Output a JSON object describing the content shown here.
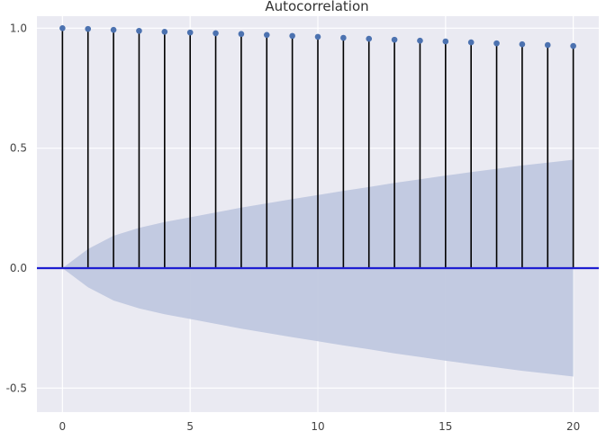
{
  "chart_data": {
    "type": "stem",
    "title": "Autocorrelation",
    "xlabel": "",
    "ylabel": "",
    "xlim": [
      -1,
      21
    ],
    "ylim": [
      -0.6,
      1.05
    ],
    "xticks": [
      "0",
      "5",
      "10",
      "15",
      "20"
    ],
    "xtick_values": [
      0,
      5,
      10,
      15,
      20
    ],
    "yticks": [
      "-0.5",
      "0.0",
      "0.5",
      "1.0"
    ],
    "ytick_values": [
      -0.5,
      0.0,
      0.5,
      1.0
    ],
    "grid": true,
    "lags": [
      0,
      1,
      2,
      3,
      4,
      5,
      6,
      7,
      8,
      9,
      10,
      11,
      12,
      13,
      14,
      15,
      16,
      17,
      18,
      19,
      20
    ],
    "acf": [
      1.0,
      0.997,
      0.993,
      0.989,
      0.985,
      0.982,
      0.979,
      0.976,
      0.972,
      0.968,
      0.964,
      0.96,
      0.956,
      0.952,
      0.948,
      0.945,
      0.941,
      0.937,
      0.933,
      0.93,
      0.926
    ],
    "confidence_band": [
      0.0,
      0.08,
      0.135,
      0.168,
      0.192,
      0.212,
      0.232,
      0.252,
      0.27,
      0.288,
      0.305,
      0.322,
      0.338,
      0.355,
      0.37,
      0.386,
      0.4,
      0.414,
      0.428,
      0.44,
      0.452
    ],
    "colors": {
      "stem": "#000000",
      "marker": "#4c72b0",
      "zero_line": "#1f1fd1",
      "band": "#c0c8df",
      "plot_bg": "#eaeaf2",
      "grid": "#ffffff"
    }
  }
}
